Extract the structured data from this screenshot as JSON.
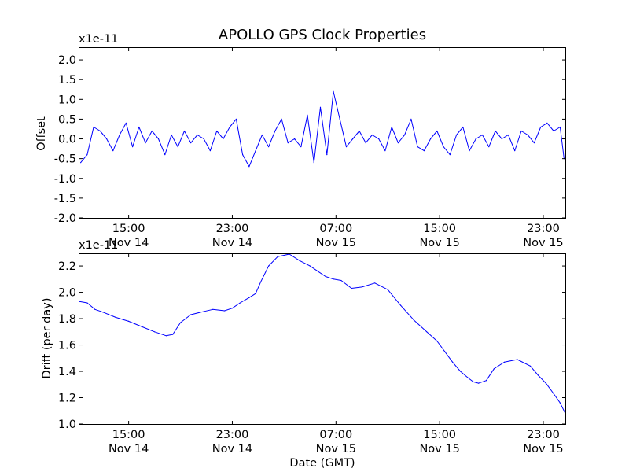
{
  "chart_data": [
    {
      "type": "line",
      "title": "APOLLO GPS Clock Properties",
      "ylabel": "Offset",
      "xlabel": "",
      "offset_text": "x1e-11",
      "ylim": [
        -2.0,
        2.3
      ],
      "yticks": [
        -2.0,
        -1.5,
        -1.0,
        -0.5,
        0.0,
        0.5,
        1.0,
        1.5,
        2.0
      ],
      "ytick_labels": [
        "-2.0",
        "-1.5",
        "-1.0",
        "-0.5",
        "0.0",
        "0.5",
        "1.0",
        "1.5",
        "2.0"
      ],
      "xlim_hours": [
        11.2,
        48.7
      ],
      "xticks_hours": [
        15,
        23,
        31,
        39,
        47
      ],
      "xtick_labels": [
        {
          "time": "15:00",
          "date": "Nov 14"
        },
        {
          "time": "23:00",
          "date": "Nov 14"
        },
        {
          "time": "07:00",
          "date": "Nov 15"
        },
        {
          "time": "15:00",
          "date": "Nov 15"
        },
        {
          "time": "23:00",
          "date": "Nov 15"
        }
      ],
      "x_unit": "hours from Nov 14 00:00 GMT",
      "line_color": "#0000ff",
      "series": [
        {
          "x": [
            11.3,
            11.8,
            12.3,
            12.8,
            13.3,
            13.8,
            14.3,
            14.8,
            15.3,
            15.8,
            16.3,
            16.8,
            17.3,
            17.8,
            18.3,
            18.8,
            19.3,
            19.8,
            20.3,
            20.8,
            21.3,
            21.8,
            22.3,
            22.8,
            23.3,
            23.8,
            24.3,
            24.8,
            25.3,
            25.8,
            26.3,
            26.8,
            27.3,
            27.8,
            28.3,
            28.8,
            29.3,
            29.8,
            30.3,
            30.8,
            31.3,
            31.8,
            32.3,
            32.8,
            33.3,
            33.8,
            34.3,
            34.8,
            35.3,
            35.8,
            36.3,
            36.8,
            37.3,
            37.8,
            38.3,
            38.8,
            39.3,
            39.8,
            40.3,
            40.8,
            41.3,
            41.8,
            42.3,
            42.8,
            43.3,
            43.8,
            44.3,
            44.8,
            45.3,
            45.8,
            46.3,
            46.8,
            47.3,
            47.8,
            48.3,
            48.6
          ],
          "values": [
            -0.6,
            -0.4,
            0.3,
            0.2,
            0.0,
            -0.3,
            0.1,
            0.4,
            -0.2,
            0.3,
            -0.1,
            0.2,
            0.0,
            -0.4,
            0.1,
            -0.2,
            0.2,
            -0.1,
            0.1,
            0.0,
            -0.3,
            0.2,
            0.0,
            0.3,
            0.5,
            -0.4,
            -0.7,
            -0.3,
            0.1,
            -0.2,
            0.2,
            0.5,
            -0.1,
            0.0,
            -0.2,
            0.6,
            -0.6,
            0.8,
            -0.4,
            1.2,
            0.5,
            -0.2,
            0.0,
            0.2,
            -0.1,
            0.1,
            0.0,
            -0.3,
            0.3,
            -0.1,
            0.1,
            0.5,
            -0.2,
            -0.3,
            0.0,
            0.2,
            -0.2,
            -0.4,
            0.1,
            0.3,
            -0.3,
            0.0,
            0.1,
            -0.2,
            0.2,
            0.0,
            0.1,
            -0.3,
            0.2,
            0.1,
            -0.1,
            0.3,
            0.4,
            0.2,
            0.3,
            -0.5
          ]
        }
      ]
    },
    {
      "type": "line",
      "title": "",
      "ylabel": "Drift (per day)",
      "xlabel": "Date (GMT)",
      "offset_text": "x1e-11",
      "ylim": [
        1.0,
        2.29
      ],
      "yticks": [
        1.0,
        1.2,
        1.4,
        1.6,
        1.8,
        2.0,
        2.2
      ],
      "ytick_labels": [
        "1.0",
        "1.2",
        "1.4",
        "1.6",
        "1.8",
        "2.0",
        "2.2"
      ],
      "xlim_hours": [
        11.2,
        48.7
      ],
      "xticks_hours": [
        15,
        23,
        31,
        39,
        47
      ],
      "xtick_labels": [
        {
          "time": "15:00",
          "date": "Nov 14"
        },
        {
          "time": "23:00",
          "date": "Nov 14"
        },
        {
          "time": "07:00",
          "date": "Nov 15"
        },
        {
          "time": "15:00",
          "date": "Nov 15"
        },
        {
          "time": "23:00",
          "date": "Nov 15"
        }
      ],
      "x_unit": "hours from Nov 14 00:00 GMT",
      "line_color": "#0000ff",
      "series": [
        {
          "x": [
            11.2,
            11.8,
            12.4,
            13.0,
            14.0,
            15.0,
            16.0,
            17.0,
            17.9,
            18.4,
            19.0,
            19.8,
            20.6,
            21.5,
            22.4,
            23.0,
            23.6,
            24.3,
            24.8,
            25.2,
            25.8,
            26.5,
            27.4,
            28.2,
            29.0,
            29.6,
            30.2,
            30.8,
            31.4,
            32.2,
            33.0,
            34.0,
            35.0,
            36.0,
            37.0,
            38.0,
            38.8,
            39.4,
            40.0,
            40.6,
            41.2,
            41.6,
            42.0,
            42.6,
            43.2,
            44.0,
            45.0,
            46.0,
            46.6,
            47.2,
            47.8,
            48.3,
            48.7
          ],
          "values": [
            1.93,
            1.92,
            1.87,
            1.85,
            1.81,
            1.78,
            1.74,
            1.7,
            1.67,
            1.68,
            1.77,
            1.83,
            1.85,
            1.87,
            1.86,
            1.88,
            1.92,
            1.96,
            1.99,
            2.08,
            2.2,
            2.27,
            2.29,
            2.24,
            2.2,
            2.16,
            2.12,
            2.1,
            2.09,
            2.03,
            2.04,
            2.07,
            2.02,
            1.9,
            1.79,
            1.7,
            1.63,
            1.55,
            1.47,
            1.4,
            1.35,
            1.32,
            1.31,
            1.33,
            1.42,
            1.47,
            1.49,
            1.44,
            1.37,
            1.31,
            1.23,
            1.16,
            1.08
          ]
        }
      ]
    }
  ]
}
